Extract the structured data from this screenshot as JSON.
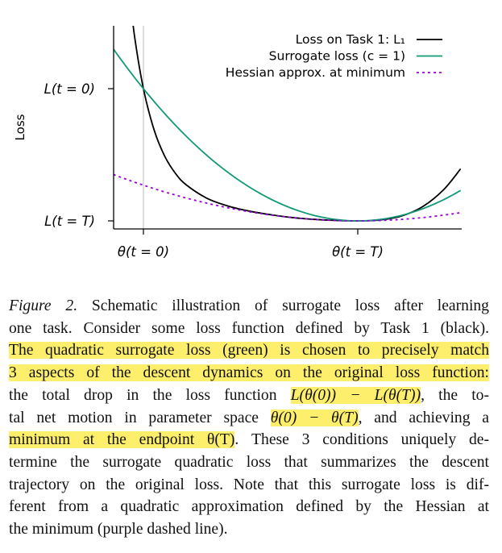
{
  "chart_data": {
    "type": "line",
    "title": "",
    "xlabel": "",
    "ylabel": "Loss",
    "x_ticks": [
      {
        "value": 0,
        "label": "θ(t = 0)"
      },
      {
        "value": 1,
        "label": "θ(t = T)"
      }
    ],
    "y_ticks": [
      {
        "value": 1,
        "label": "L(t = 0)"
      },
      {
        "value": 0,
        "label": "L(t = T)"
      }
    ],
    "xlim": [
      -0.14,
      1.48
    ],
    "ylim": [
      -0.06,
      1.48
    ],
    "legend_position": "top-right",
    "series": [
      {
        "name": "Loss on Task 1: L₁",
        "color": "#000000",
        "style": "solid",
        "x": [
          -0.07,
          -0.04,
          0,
          0.05,
          0.1,
          0.15,
          0.2,
          0.3,
          0.4,
          0.5,
          0.6,
          0.7,
          0.8,
          0.9,
          1.0,
          1.1,
          1.2,
          1.3,
          1.4,
          1.48
        ],
        "y": [
          1.78,
          1.38,
          1.0,
          0.687,
          0.487,
          0.358,
          0.272,
          0.168,
          0.11,
          0.072,
          0.045,
          0.024,
          0.011,
          0.003,
          0,
          0.006,
          0.035,
          0.105,
          0.235,
          0.394
        ]
      },
      {
        "name": "Surrogate loss (c = 1)",
        "color": "#119977",
        "style": "solid",
        "quadratic": {
          "curvature": 1.0,
          "min_x": 1,
          "min_y": 0
        }
      },
      {
        "name": "Hessian approx. at minimum",
        "color": "#9900dd",
        "style": "dotted",
        "quadratic": {
          "curvature": 0.27,
          "min_x": 1,
          "min_y": 0
        }
      }
    ],
    "vertical_reference_line": {
      "x": 0,
      "color": "#bbbbbb"
    }
  },
  "caption": {
    "l1a": "Figure 2.",
    "l1b": " Schematic illustration of surrogate loss after learning",
    "l2": "one task. Consider some loss function defined by Task 1 (black).",
    "l3": "The quadratic surrogate loss (green) is chosen to precisely match",
    "l4": "3 aspects of the descent dynamics on the original loss function:",
    "l5a": "the total drop in the loss function ",
    "l5b": "L(θ(0)) − L(θ(T))",
    "l5c": ", the to-",
    "l6a": "tal net motion in parameter space ",
    "l6b": "θ(0) − θ(T)",
    "l6c": ", and achieving a",
    "l7a": "minimum at the endpoint θ(T)",
    "l7b": ". These 3 conditions uniquely de-",
    "l8": "termine the surrogate quadratic loss that summarizes the descent",
    "l9": "trajectory on the original loss. Note that this surrogate loss is dif-",
    "l10": "ferent from a quadratic approximation defined by the Hessian at",
    "l11": "the minimum (purple dashed line)."
  }
}
